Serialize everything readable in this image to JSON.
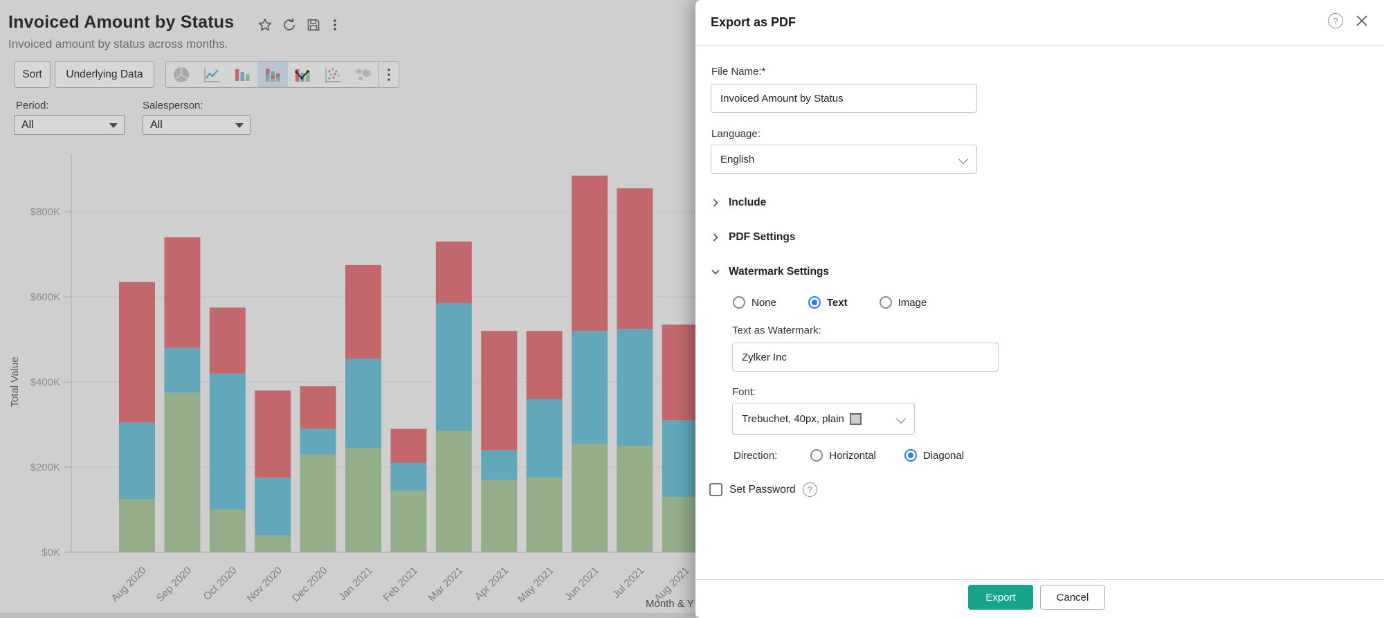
{
  "page": {
    "title": "Invoiced Amount by Status",
    "subtitle": "Invoiced amount by status across months.",
    "toolbar": {
      "sort_label": "Sort",
      "underlying_data_label": "Underlying Data"
    },
    "filters": {
      "period_label": "Period:",
      "period_value": "All",
      "salesperson_label": "Salesperson:",
      "salesperson_value": "All"
    }
  },
  "chart_data": {
    "type": "bar",
    "stacked": true,
    "title": "Invoiced Amount by Status",
    "categories": [
      "Aug 2020",
      "Sep 2020",
      "Oct 2020",
      "Nov 2020",
      "Dec 2020",
      "Jan 2021",
      "Feb 2021",
      "Mar 2021",
      "Apr 2021",
      "May 2021",
      "Jun 2021",
      "Jul 2021",
      "Aug 2021"
    ],
    "series": [
      {
        "name": "green-segment",
        "color": "#95ae8a",
        "values": [
          125,
          375,
          100,
          40,
          230,
          245,
          145,
          285,
          170,
          175,
          255,
          250,
          130
        ]
      },
      {
        "name": "blue-segment",
        "color": "#63a7bb",
        "values": [
          180,
          105,
          320,
          135,
          60,
          210,
          65,
          300,
          70,
          185,
          265,
          275,
          180
        ]
      },
      {
        "name": "red-segment",
        "color": "#c2686c",
        "values": [
          330,
          260,
          155,
          205,
          100,
          220,
          80,
          145,
          280,
          160,
          365,
          330,
          225
        ]
      }
    ],
    "values_unit": "USD thousands",
    "ylabel": "Total Value",
    "xlabel_visible": "Month & Y",
    "yticks": [
      "$0K",
      "$200K",
      "$400K",
      "$600K",
      "$800K"
    ],
    "ylim": [
      0,
      900
    ],
    "grid": true,
    "legend": "not visible (hidden by dialog)"
  },
  "modal": {
    "title": "Export as PDF",
    "file_name_label": "File Name:*",
    "file_name_value": "Invoiced Amount by Status",
    "language_label": "Language:",
    "language_value": "English",
    "sections": [
      {
        "label": "Include"
      },
      {
        "label": "PDF Settings"
      },
      {
        "label": "Watermark Settings"
      }
    ],
    "watermark": {
      "options": [
        "None",
        "Text",
        "Image"
      ],
      "selected": "Text",
      "text_label": "Text as Watermark:",
      "text_value": "Zylker Inc",
      "font_label": "Font:",
      "font_value": "Trebuchet, 40px, plain",
      "direction_label": "Direction:",
      "direction_options": [
        "Horizontal",
        "Diagonal"
      ],
      "direction_selected": "Diagonal"
    },
    "set_password_label": "Set Password",
    "footer": {
      "export_label": "Export",
      "cancel_label": "Cancel"
    }
  },
  "colors": {
    "export_button": "#17a589",
    "radio_selected": "#2a7cf7",
    "bar_red": "#c2686c",
    "bar_blue": "#63a7bb",
    "bar_green": "#95ae8a",
    "selected_charttype_bg": "#b9c3d1"
  }
}
